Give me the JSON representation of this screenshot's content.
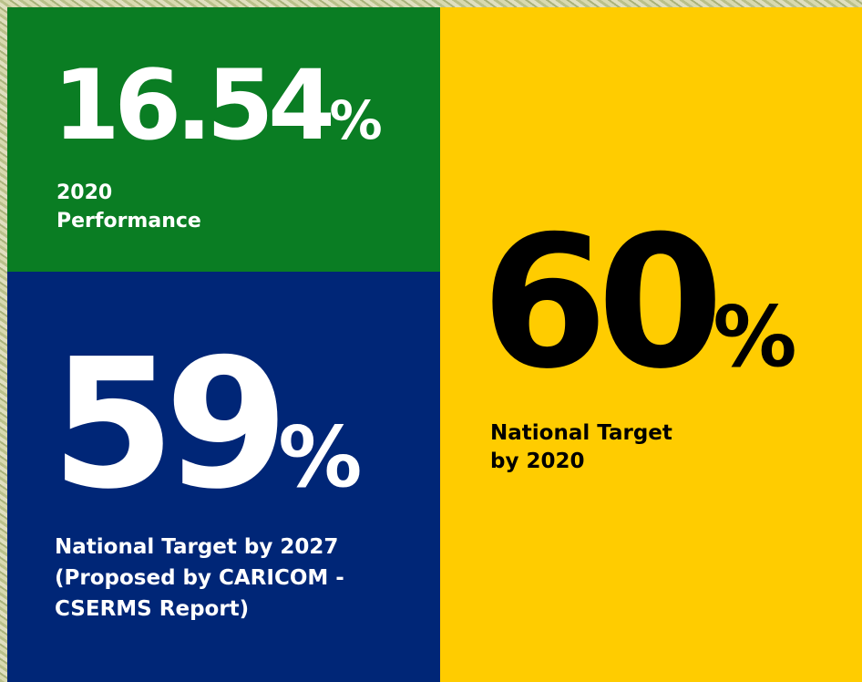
{
  "cards": [
    {
      "value": 16.54,
      "unit": "%",
      "label": [
        "2020",
        "Performance"
      ]
    },
    {
      "value": 59,
      "unit": "%",
      "label": [
        "National Target by 2027",
        "(Proposed by CARICOM -",
        "CSERMS Report)"
      ]
    },
    {
      "value": 60,
      "unit": "%",
      "label": [
        "National Target",
        "by 2020"
      ]
    }
  ]
}
